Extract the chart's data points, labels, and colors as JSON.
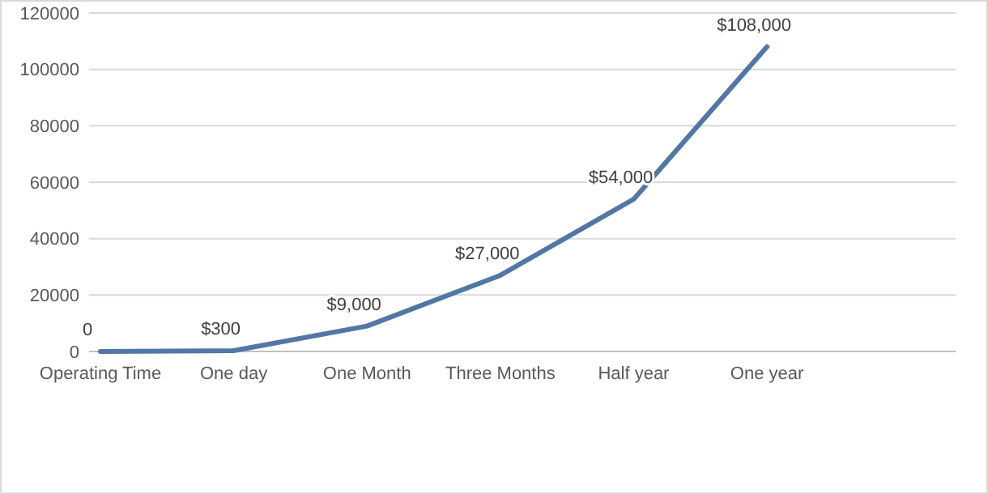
{
  "chart_data": {
    "type": "line",
    "categories": [
      "Operating Time",
      "One day",
      "One Month",
      "Three Months",
      "Half year",
      "One year"
    ],
    "values": [
      0,
      300,
      9000,
      27000,
      54000,
      108000
    ],
    "value_labels": [
      "0",
      "$300",
      "$9,000",
      "$27,000",
      "$54,000",
      "$108,000"
    ],
    "color": "#5077a6",
    "ylim": [
      0,
      120000
    ],
    "yticks": [
      0,
      20000,
      40000,
      60000,
      80000,
      100000,
      120000
    ],
    "grid": "y",
    "marker": "none",
    "line_style": "solid"
  }
}
